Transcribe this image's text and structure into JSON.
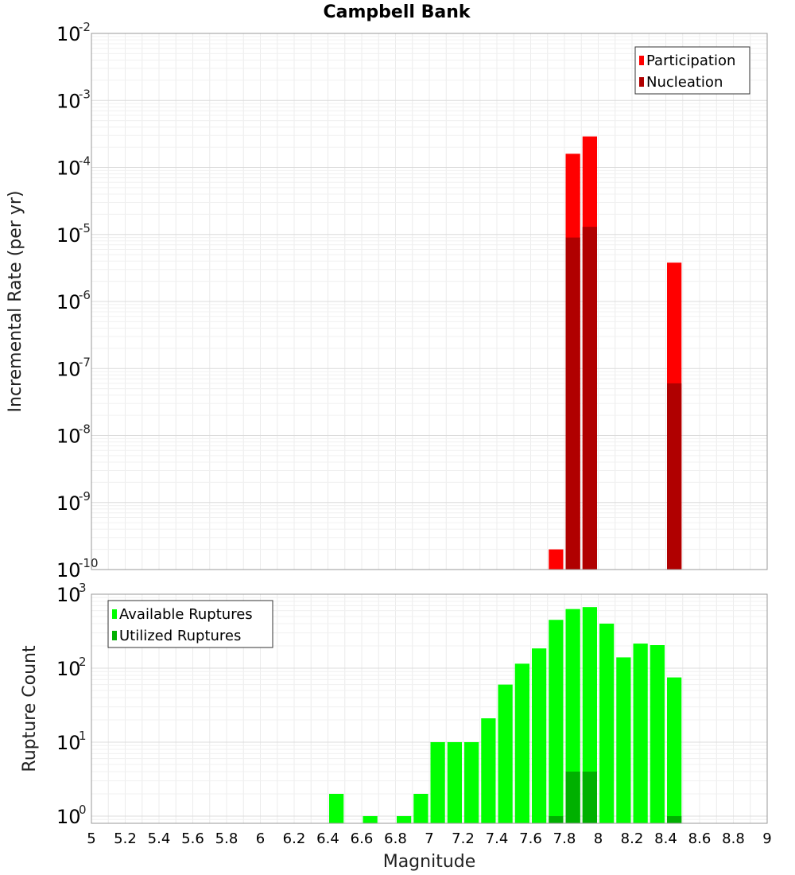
{
  "chart_data": [
    {
      "type": "bar",
      "title": "Campbell Bank",
      "xlabel": "",
      "ylabel": "Incremental Rate (per yr)",
      "yscale": "log",
      "ylim": [
        1e-10,
        0.01
      ],
      "xlim": [
        5,
        9
      ],
      "bar_width": 0.1,
      "grid": true,
      "legend_position": "top-right",
      "y_tick_exponents": [
        "-2",
        "-3",
        "-4",
        "-5",
        "-6",
        "-7",
        "-8",
        "-9",
        "-10"
      ],
      "series": [
        {
          "name": "Participation",
          "color": "#ff0000",
          "x": [
            7.75,
            7.85,
            7.95,
            8.45
          ],
          "values": [
            2e-10,
            0.00016,
            0.00029,
            3.8e-06
          ]
        },
        {
          "name": "Nucleation",
          "color": "#b00000",
          "x": [
            7.85,
            7.95,
            8.45
          ],
          "values": [
            9e-06,
            1.3e-05,
            6e-08
          ]
        }
      ]
    },
    {
      "type": "bar",
      "title": "",
      "xlabel": "Magnitude",
      "ylabel": "Rupture Count",
      "yscale": "log",
      "ylim": [
        0.8,
        1000
      ],
      "xlim": [
        5,
        9
      ],
      "bar_width": 0.1,
      "grid": true,
      "legend_position": "top-left",
      "x_ticks": [
        "5",
        "5.2",
        "5.4",
        "5.6",
        "5.8",
        "6",
        "6.2",
        "6.4",
        "6.6",
        "6.8",
        "7",
        "7.2",
        "7.4",
        "7.6",
        "7.8",
        "8",
        "8.2",
        "8.4",
        "8.6",
        "8.8",
        "9"
      ],
      "y_tick_exponents": [
        "3",
        "2",
        "1",
        "0"
      ],
      "series": [
        {
          "name": "Available Ruptures",
          "color": "#00ff00",
          "x": [
            6.45,
            6.65,
            6.85,
            6.95,
            7.05,
            7.15,
            7.25,
            7.35,
            7.45,
            7.55,
            7.65,
            7.75,
            7.85,
            7.95,
            8.05,
            8.15,
            8.25,
            8.35,
            8.45
          ],
          "values": [
            2,
            1,
            1,
            2,
            10,
            10,
            10,
            21,
            60,
            115,
            185,
            450,
            630,
            670,
            400,
            140,
            215,
            205,
            75
          ]
        },
        {
          "name": "Utilized Ruptures",
          "color": "#00b000",
          "x": [
            7.75,
            7.85,
            7.95,
            8.45
          ],
          "values": [
            1,
            4,
            4,
            1
          ]
        }
      ]
    }
  ]
}
